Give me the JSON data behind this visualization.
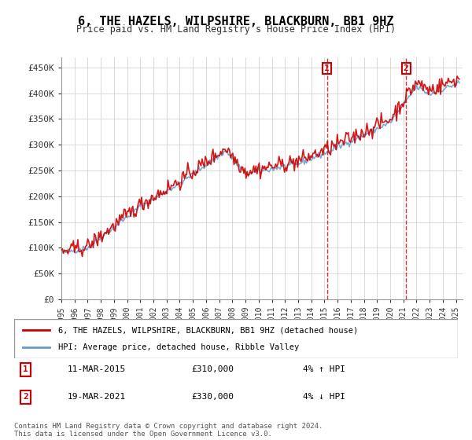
{
  "title": "6, THE HAZELS, WILPSHIRE, BLACKBURN, BB1 9HZ",
  "subtitle": "Price paid vs. HM Land Registry's House Price Index (HPI)",
  "ylabel_ticks": [
    "£0",
    "£50K",
    "£100K",
    "£150K",
    "£200K",
    "£250K",
    "£300K",
    "£350K",
    "£400K",
    "£450K"
  ],
  "ytick_values": [
    0,
    50000,
    100000,
    150000,
    200000,
    250000,
    300000,
    350000,
    400000,
    450000
  ],
  "ylim": [
    0,
    470000
  ],
  "xlim_start": 1995.0,
  "xlim_end": 2025.5,
  "red_line_color": "#cc0000",
  "blue_line_color": "#6699cc",
  "marker1_x": 2015.2,
  "marker1_y": 310000,
  "marker2_x": 2021.2,
  "marker2_y": 330000,
  "marker1_label": "1",
  "marker2_label": "2",
  "annotation1_date": "11-MAR-2015",
  "annotation1_price": "£310,000",
  "annotation1_hpi": "4% ↑ HPI",
  "annotation2_date": "19-MAR-2021",
  "annotation2_price": "£330,000",
  "annotation2_hpi": "4% ↓ HPI",
  "legend_red_label": "6, THE HAZELS, WILPSHIRE, BLACKBURN, BB1 9HZ (detached house)",
  "legend_blue_label": "HPI: Average price, detached house, Ribble Valley",
  "footer": "Contains HM Land Registry data © Crown copyright and database right 2024.\nThis data is licensed under the Open Government Licence v3.0.",
  "xtick_years": [
    1995,
    1996,
    1997,
    1998,
    1999,
    2000,
    2001,
    2002,
    2003,
    2004,
    2005,
    2006,
    2007,
    2008,
    2009,
    2010,
    2011,
    2012,
    2013,
    2014,
    2015,
    2016,
    2017,
    2018,
    2019,
    2020,
    2021,
    2022,
    2023,
    2024,
    2025
  ],
  "background_color": "#ffffff",
  "grid_color": "#cccccc"
}
